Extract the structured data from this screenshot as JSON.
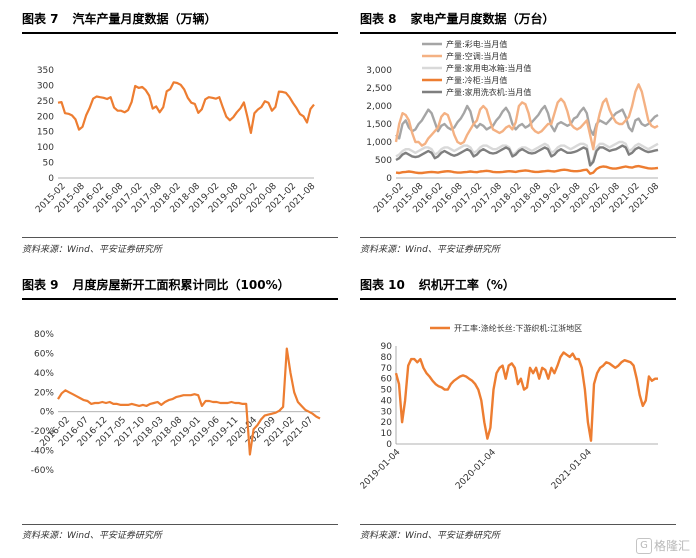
{
  "source_text": "资料来源：Wind、平安证券研究所",
  "watermark": "格隆汇",
  "panels": [
    {
      "num": "图表 7",
      "title": "汽车产量月度数据（万辆）"
    },
    {
      "num": "图表 8",
      "title": "家电产量月度数据（万台）"
    },
    {
      "num": "图表 9",
      "title": "月度房屋新开工面积累计同比（100%）"
    },
    {
      "num": "图表 10",
      "title": "织机开工率（%）"
    }
  ],
  "chart_data": [
    {
      "type": "line",
      "title": "汽车产量月度数据（万辆）",
      "ylim": [
        0,
        350
      ],
      "yticks": [
        "0",
        "50",
        "100",
        "150",
        "200",
        "250",
        "300",
        "350"
      ],
      "xticks": [
        "2015-02",
        "2015-08",
        "2016-02",
        "2016-08",
        "2017-02",
        "2017-08",
        "2018-02",
        "2018-08",
        "2019-02",
        "2019-08",
        "2020-02",
        "2020-08",
        "2021-02",
        "2021-08"
      ],
      "x_start": "2015-01",
      "x_end": "2021-09",
      "series": [
        {
          "color": "#ED7D31",
          "values": [
            244,
            246,
            210,
            208,
            203,
            190,
            157,
            166,
            203,
            227,
            257,
            264,
            262,
            260,
            256,
            262,
            228,
            218,
            218,
            213,
            220,
            246,
            298,
            292,
            295,
            285,
            267,
            225,
            232,
            213,
            229,
            281,
            288,
            310,
            308,
            302,
            287,
            260,
            244,
            240,
            211,
            223,
            255,
            262,
            260,
            257,
            262,
            229,
            199,
            187,
            197,
            213,
            226,
            245,
            198,
            146,
            210,
            222,
            230,
            249,
            244,
            218,
            230,
            280,
            279,
            276,
            262,
            243,
            227,
            207,
            200,
            180,
            224,
            238
          ]
        }
      ]
    },
    {
      "type": "line",
      "title": "家电产量月度数据（万台）",
      "ylim": [
        0,
        3000
      ],
      "yticks": [
        "0",
        "500",
        "1,000",
        "1,500",
        "2,000",
        "2,500",
        "3,000"
      ],
      "xticks": [
        "2015-02",
        "2015-08",
        "2016-02",
        "2016-08",
        "2017-02",
        "2017-08",
        "2018-02",
        "2018-08",
        "2019-02",
        "2019-08",
        "2020-02",
        "2020-08",
        "2021-02",
        "2021-08"
      ],
      "x_start": "2015-01",
      "x_end": "2021-09",
      "series": [
        {
          "name": "产量:彩电:当月值",
          "color": "#A5A5A5",
          "values": [
            1200,
            1100,
            1500,
            1600,
            1400,
            1300,
            1350,
            1500,
            1600,
            1750,
            1900,
            1800,
            1550,
            1300,
            1450,
            1500,
            1400,
            1350,
            1400,
            1550,
            1650,
            1800,
            2000,
            1850,
            1500,
            1400,
            1500,
            1450,
            1350,
            1400,
            1450,
            1600,
            1700,
            1850,
            1950,
            1800,
            1500,
            1350,
            1450,
            1500,
            1400,
            1450,
            1550,
            1650,
            1750,
            1900,
            2000,
            1800,
            1450,
            1300,
            1500,
            1550,
            1500,
            1450,
            1500,
            1650,
            1700,
            1850,
            1950,
            1800,
            1350,
            1200,
            1500,
            1600,
            1550,
            1500,
            1600,
            1700,
            1800,
            1850,
            1900,
            1700,
            1400,
            1300,
            1600,
            1650,
            1500,
            1450,
            1500,
            1600,
            1700,
            1750
          ]
        },
        {
          "name": "产量:空调:当月值",
          "color": "#F4B183",
          "values": [
            1000,
            1500,
            1800,
            1750,
            1600,
            1250,
            1000,
            1000,
            900,
            950,
            1100,
            1200,
            1300,
            1400,
            1700,
            1800,
            1750,
            1500,
            1200,
            1000,
            950,
            1000,
            1200,
            1350,
            1500,
            1600,
            1900,
            2000,
            1900,
            1600,
            1350,
            1300,
            1250,
            1300,
            1400,
            1450,
            1350,
            1550,
            2000,
            2100,
            2050,
            1800,
            1400,
            1300,
            1250,
            1300,
            1400,
            1500,
            1500,
            1800,
            2100,
            2200,
            2100,
            1850,
            1500,
            1400,
            1350,
            1400,
            1500,
            1600,
            1200,
            800,
            1400,
            1800,
            2100,
            2200,
            1900,
            1700,
            1550,
            1500,
            1500,
            1600,
            1700,
            2000,
            2400,
            2600,
            2400,
            2000,
            1600,
            1450,
            1400,
            1450
          ]
        },
        {
          "name": "产量:家用电冰箱:当月值",
          "color": "#D9D9D9",
          "values": [
            600,
            650,
            750,
            800,
            800,
            750,
            700,
            750,
            800,
            850,
            850,
            800,
            650,
            700,
            800,
            850,
            850,
            800,
            750,
            800,
            850,
            900,
            900,
            850,
            700,
            750,
            850,
            900,
            900,
            850,
            800,
            800,
            850,
            900,
            900,
            850,
            650,
            700,
            800,
            850,
            850,
            800,
            750,
            800,
            850,
            900,
            950,
            900,
            700,
            750,
            850,
            900,
            900,
            850,
            800,
            850,
            900,
            950,
            950,
            900,
            400,
            500,
            850,
            950,
            950,
            900,
            850,
            900,
            950,
            1000,
            1000,
            950,
            750,
            800,
            900,
            950,
            900,
            850,
            800,
            850,
            900,
            950
          ]
        },
        {
          "name": "产量:冷柜:当月值",
          "color": "#ED7D31",
          "values": [
            150,
            140,
            160,
            170,
            180,
            170,
            150,
            140,
            140,
            150,
            160,
            170,
            160,
            150,
            170,
            180,
            190,
            180,
            160,
            150,
            150,
            160,
            170,
            180,
            170,
            160,
            180,
            190,
            200,
            190,
            170,
            160,
            160,
            170,
            180,
            190,
            180,
            170,
            190,
            200,
            210,
            200,
            180,
            170,
            170,
            180,
            190,
            200,
            190,
            180,
            200,
            220,
            230,
            220,
            200,
            190,
            190,
            200,
            220,
            230,
            120,
            150,
            250,
            300,
            320,
            310,
            280,
            260,
            260,
            280,
            300,
            320,
            300,
            290,
            320,
            330,
            310,
            290,
            270,
            260,
            270,
            280
          ]
        },
        {
          "name": "产量:家用洗衣机:当月值",
          "color": "#7F7F7F",
          "values": [
            500,
            550,
            650,
            700,
            650,
            600,
            580,
            600,
            650,
            700,
            750,
            700,
            550,
            600,
            700,
            750,
            700,
            650,
            620,
            650,
            700,
            750,
            800,
            750,
            600,
            650,
            750,
            800,
            750,
            700,
            680,
            700,
            750,
            800,
            850,
            800,
            600,
            650,
            750,
            800,
            750,
            700,
            680,
            700,
            750,
            800,
            850,
            800,
            600,
            650,
            750,
            800,
            750,
            700,
            700,
            720,
            750,
            800,
            850,
            800,
            350,
            450,
            750,
            850,
            850,
            800,
            750,
            780,
            800,
            850,
            900,
            850,
            650,
            700,
            800,
            850,
            800,
            750,
            720,
            740,
            760,
            780
          ]
        }
      ]
    },
    {
      "type": "line",
      "title": "月度房屋新开工面积累计同比（100%）",
      "ylim": [
        -0.6,
        0.8
      ],
      "yticks": [
        "-60%",
        "-40%",
        "-20%",
        "0%",
        "20%",
        "40%",
        "60%",
        "80%"
      ],
      "xticks": [
        "2016-02",
        "2016-07",
        "2016-12",
        "2017-05",
        "2017-10",
        "2018-03",
        "2018-08",
        "2019-01",
        "2019-06",
        "2019-11",
        "2020-04",
        "2020-09",
        "2021-02",
        "2021-07"
      ],
      "x_start": "2015-12",
      "x_end": "2021-10",
      "series": [
        {
          "color": "#ED7D31",
          "values": [
            0.13,
            0.19,
            0.22,
            0.2,
            0.18,
            0.16,
            0.14,
            0.12,
            0.11,
            0.08,
            0.09,
            0.09,
            0.1,
            0.09,
            0.1,
            0.08,
            0.08,
            0.07,
            0.07,
            0.07,
            0.08,
            0.07,
            0.06,
            0.07,
            0.06,
            0.08,
            0.09,
            0.1,
            0.07,
            0.1,
            0.12,
            0.13,
            0.15,
            0.16,
            0.17,
            0.17,
            0.17,
            0.18,
            0.17,
            0.06,
            0.11,
            0.11,
            0.1,
            0.1,
            0.09,
            0.09,
            0.09,
            0.1,
            0.09,
            0.09,
            0.08,
            0.08,
            -0.44,
            -0.18,
            -0.14,
            -0.08,
            -0.04,
            -0.03,
            -0.02,
            -0.01,
            0.01,
            0.05,
            0.65,
            0.4,
            0.2,
            0.1,
            0.06,
            0.02,
            0.0,
            -0.02,
            -0.05,
            -0.07
          ]
        }
      ]
    },
    {
      "type": "line",
      "title": "织机开工率（%）",
      "ylim": [
        0,
        90
      ],
      "yticks": [
        "0",
        "10",
        "20",
        "30",
        "40",
        "50",
        "60",
        "70",
        "80",
        "90"
      ],
      "xticks": [
        "2019-01-04",
        "2020-01-04",
        "2021-01-04"
      ],
      "x_start": "2019-01-04",
      "x_end": "2021-10-01",
      "series": [
        {
          "name": "开工率:涤纶长丝:下游织机:江浙地区",
          "color": "#ED7D31",
          "values": [
            65,
            55,
            20,
            40,
            72,
            78,
            78,
            75,
            78,
            70,
            65,
            62,
            58,
            55,
            53,
            52,
            50,
            50,
            55,
            58,
            60,
            62,
            63,
            62,
            60,
            58,
            55,
            50,
            40,
            20,
            5,
            15,
            50,
            65,
            70,
            72,
            60,
            72,
            74,
            70,
            55,
            60,
            50,
            52,
            70,
            65,
            70,
            60,
            70,
            68,
            60,
            70,
            65,
            72,
            80,
            84,
            82,
            80,
            83,
            78,
            78,
            70,
            50,
            20,
            3,
            55,
            65,
            70,
            72,
            75,
            74,
            72,
            70,
            72,
            75,
            77,
            76,
            75,
            72,
            60,
            45,
            35,
            40,
            62,
            58,
            60,
            60
          ]
        }
      ]
    }
  ]
}
